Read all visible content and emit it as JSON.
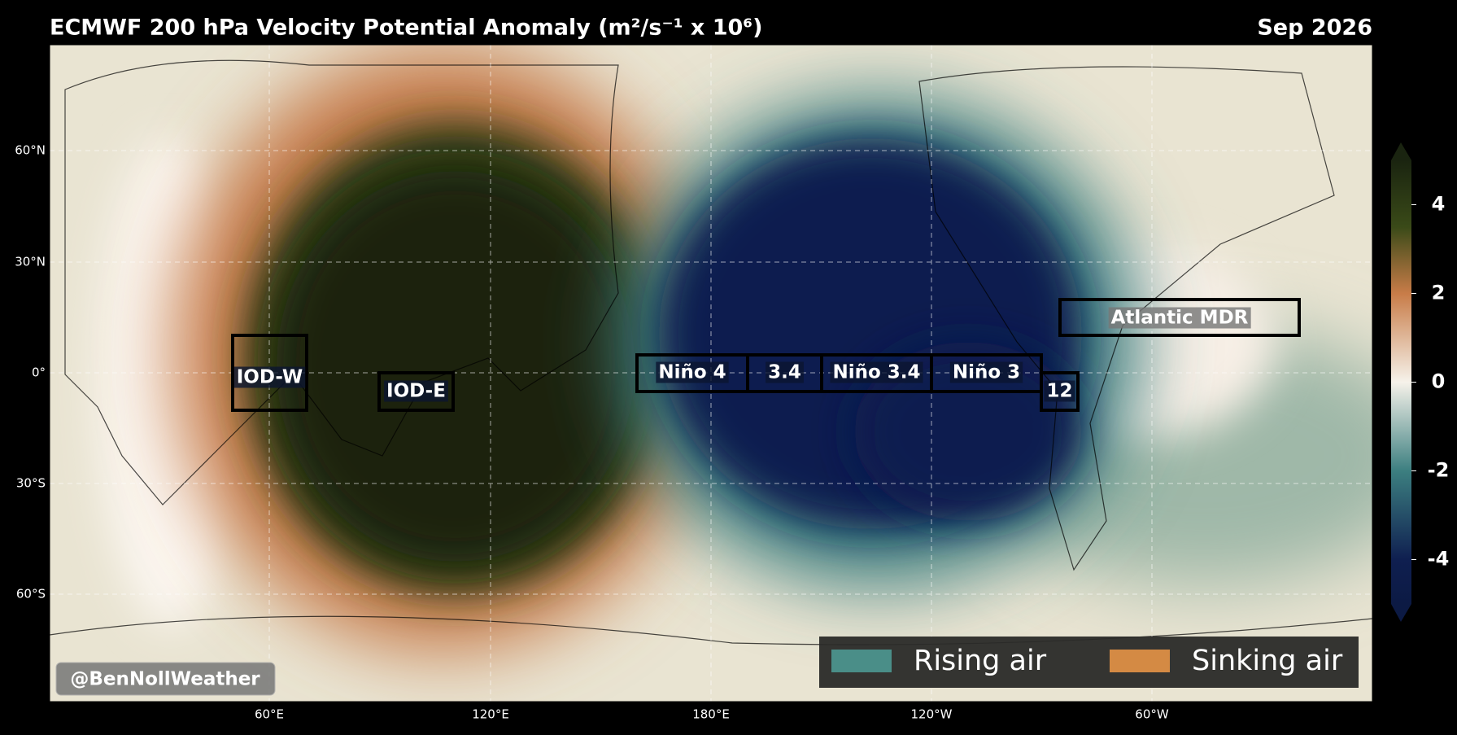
{
  "header": {
    "title": "ECMWF 200 hPa Velocity Potential Anomaly (m²/s⁻¹ x 10⁶)",
    "date": "Sep 2026"
  },
  "map": {
    "latitude_labels": [
      "60°N",
      "30°N",
      "0°",
      "30°S",
      "60°S"
    ],
    "longitude_labels": [
      "60°E",
      "120°E",
      "180°E",
      "120°W",
      "60°W"
    ],
    "regions": [
      "IOD-W",
      "IOD-E",
      "Niño 4",
      "3.4",
      "Niño 3.4",
      "Niño 3",
      "12",
      "Atlantic MDR"
    ]
  },
  "colorbar": {
    "lim": [
      -5,
      5
    ],
    "ticks": [
      4,
      2,
      0,
      -2,
      -4
    ]
  },
  "legend": {
    "entries": [
      {
        "label": "Rising air",
        "color": "#4a8e88"
      },
      {
        "label": "Sinking air",
        "color": "#d48a44"
      }
    ]
  },
  "watermark": "@BenNollWeather"
}
